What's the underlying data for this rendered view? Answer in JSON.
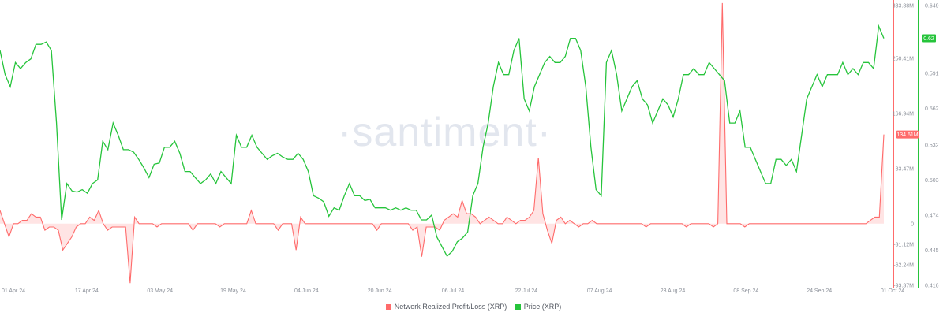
{
  "watermark": "·santiment·",
  "chart_data": {
    "type": "line",
    "x_ticks": [
      "01 Apr 24",
      "17 Apr 24",
      "03 May 24",
      "19 May 24",
      "04 Jun 24",
      "20 Jun 24",
      "06 Jul 24",
      "22 Jul 24",
      "07 Aug 24",
      "23 Aug 24",
      "08 Sep 24",
      "24 Sep 24",
      "01 Oct 24"
    ],
    "y_left_ticks": [
      "333.88M",
      "250.41M",
      "166.94M",
      "83.47M",
      "0",
      "-31.12M",
      "-62.24M",
      "-93.37M"
    ],
    "y_right_ticks": [
      "0.649",
      "0.591",
      "0.562",
      "0.532",
      "0.503",
      "0.474",
      "0.445",
      "0.416"
    ],
    "ylim_left": [
      -93.37,
      333.88
    ],
    "ylim_right": [
      0.416,
      0.649
    ],
    "units_left": "M",
    "current_values": {
      "profit_loss": "134.61M",
      "price": "0.62"
    },
    "series": [
      {
        "name": "Network Realized Profit/Loss (XRP)",
        "color": "#ff6b6b",
        "values": [
          20,
          0,
          -20,
          0,
          0,
          5,
          5,
          15,
          10,
          10,
          -10,
          -5,
          -5,
          -10,
          -40,
          -30,
          -20,
          -5,
          0,
          0,
          10,
          5,
          20,
          0,
          -10,
          -5,
          -5,
          -5,
          -5,
          -90,
          10,
          0,
          0,
          0,
          0,
          -5,
          0,
          0,
          0,
          0,
          0,
          0,
          0,
          -10,
          0,
          0,
          0,
          0,
          0,
          -5,
          0,
          0,
          0,
          0,
          0,
          0,
          20,
          0,
          0,
          0,
          0,
          0,
          -10,
          0,
          0,
          0,
          -40,
          10,
          0,
          0,
          0,
          0,
          0,
          0,
          0,
          0,
          0,
          0,
          0,
          0,
          0,
          0,
          0,
          0,
          -10,
          0,
          0,
          0,
          0,
          0,
          0,
          0,
          -10,
          -5,
          -50,
          -5,
          -5,
          -5,
          -10,
          5,
          10,
          15,
          10,
          35,
          15,
          15,
          10,
          0,
          5,
          10,
          5,
          0,
          0,
          10,
          5,
          0,
          5,
          5,
          10,
          20,
          100,
          15,
          -10,
          -30,
          5,
          10,
          0,
          5,
          0,
          -5,
          0,
          0,
          5,
          0,
          0,
          0,
          0,
          0,
          0,
          0,
          0,
          0,
          0,
          0,
          -5,
          0,
          0,
          0,
          0,
          0,
          0,
          0,
          0,
          -5,
          0,
          0,
          0,
          0,
          0,
          -5,
          0,
          334,
          0,
          0,
          0,
          0,
          -5,
          0,
          0,
          0,
          0,
          0,
          0,
          0,
          0,
          0,
          0,
          0,
          0,
          0,
          0,
          0,
          0,
          0,
          0,
          0,
          0,
          0,
          0,
          0,
          0,
          0,
          0,
          0,
          5,
          10,
          10,
          135
        ]
      },
      {
        "name": "Price (XRP)",
        "color": "#26c43b",
        "values": [
          0.61,
          0.59,
          0.58,
          0.6,
          0.595,
          0.6,
          0.603,
          0.615,
          0.615,
          0.617,
          0.61,
          0.55,
          0.47,
          0.5,
          0.494,
          0.493,
          0.495,
          0.492,
          0.5,
          0.503,
          0.535,
          0.528,
          0.55,
          0.54,
          0.528,
          0.528,
          0.526,
          0.52,
          0.513,
          0.505,
          0.516,
          0.517,
          0.53,
          0.53,
          0.535,
          0.525,
          0.51,
          0.51,
          0.505,
          0.5,
          0.503,
          0.508,
          0.5,
          0.51,
          0.505,
          0.5,
          0.54,
          0.53,
          0.53,
          0.54,
          0.53,
          0.525,
          0.52,
          0.523,
          0.525,
          0.522,
          0.52,
          0.52,
          0.525,
          0.52,
          0.51,
          0.49,
          0.488,
          0.485,
          0.473,
          0.48,
          0.478,
          0.49,
          0.5,
          0.49,
          0.49,
          0.486,
          0.487,
          0.48,
          0.48,
          0.48,
          0.478,
          0.48,
          0.478,
          0.48,
          0.478,
          0.478,
          0.47,
          0.47,
          0.474,
          0.456,
          0.448,
          0.44,
          0.444,
          0.452,
          0.455,
          0.46,
          0.49,
          0.5,
          0.53,
          0.55,
          0.58,
          0.6,
          0.59,
          0.59,
          0.61,
          0.62,
          0.57,
          0.56,
          0.58,
          0.59,
          0.6,
          0.605,
          0.6,
          0.6,
          0.605,
          0.62,
          0.62,
          0.61,
          0.58,
          0.53,
          0.495,
          0.49,
          0.6,
          0.61,
          0.59,
          0.56,
          0.57,
          0.58,
          0.585,
          0.57,
          0.565,
          0.55,
          0.56,
          0.57,
          0.565,
          0.555,
          0.57,
          0.59,
          0.59,
          0.595,
          0.59,
          0.59,
          0.6,
          0.595,
          0.59,
          0.585,
          0.55,
          0.55,
          0.56,
          0.53,
          0.53,
          0.52,
          0.51,
          0.5,
          0.5,
          0.52,
          0.52,
          0.515,
          0.52,
          0.51,
          0.54,
          0.57,
          0.58,
          0.59,
          0.58,
          0.59,
          0.59,
          0.59,
          0.6,
          0.59,
          0.595,
          0.59,
          0.6,
          0.6,
          0.595,
          0.63,
          0.62
        ]
      }
    ],
    "legend_position": "bottom-center",
    "grid": false
  }
}
